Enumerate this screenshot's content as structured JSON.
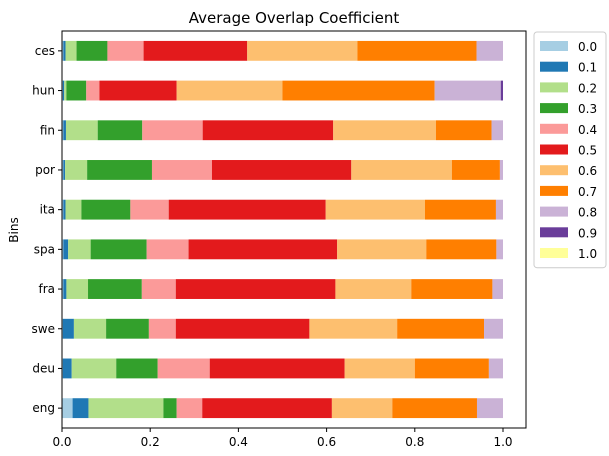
{
  "chart_data": {
    "type": "bar",
    "orientation": "horizontal",
    "stacked": true,
    "title": "Average Overlap Coefficient",
    "xlabel": "",
    "ylabel": "Bins",
    "xlim": [
      0,
      1.0
    ],
    "x_ticks": [
      "0.0",
      "0.2",
      "0.4",
      "0.6",
      "0.8",
      "1.0"
    ],
    "grid": false,
    "legend_position": "outside-top-right",
    "categories": [
      "ces",
      "hun",
      "fin",
      "por",
      "ita",
      "spa",
      "fra",
      "swe",
      "deu",
      "eng"
    ],
    "series": [
      {
        "name": "0.0",
        "color": "#a6cee3",
        "values": [
          0.003,
          0.002,
          0.003,
          0.003,
          0.003,
          0.003,
          0.003,
          0.002,
          0.002,
          0.024
        ]
      },
      {
        "name": "0.1",
        "color": "#1f78b4",
        "values": [
          0.005,
          0.003,
          0.006,
          0.004,
          0.005,
          0.011,
          0.007,
          0.025,
          0.02,
          0.036
        ]
      },
      {
        "name": "0.2",
        "color": "#b2df8a",
        "values": [
          0.025,
          0.005,
          0.072,
          0.05,
          0.036,
          0.051,
          0.049,
          0.073,
          0.101,
          0.17
        ]
      },
      {
        "name": "0.3",
        "color": "#33a02c",
        "values": [
          0.07,
          0.045,
          0.101,
          0.147,
          0.111,
          0.127,
          0.122,
          0.097,
          0.094,
          0.03
        ]
      },
      {
        "name": "0.4",
        "color": "#fb9a99",
        "values": [
          0.082,
          0.03,
          0.137,
          0.136,
          0.087,
          0.095,
          0.077,
          0.061,
          0.118,
          0.058
        ]
      },
      {
        "name": "0.5",
        "color": "#e31a1c",
        "values": [
          0.235,
          0.175,
          0.296,
          0.316,
          0.356,
          0.337,
          0.362,
          0.303,
          0.306,
          0.294
        ]
      },
      {
        "name": "0.6",
        "color": "#fdbf6f",
        "values": [
          0.25,
          0.24,
          0.233,
          0.228,
          0.225,
          0.202,
          0.172,
          0.199,
          0.159,
          0.137
        ]
      },
      {
        "name": "0.7",
        "color": "#ff7f00",
        "values": [
          0.27,
          0.345,
          0.126,
          0.109,
          0.161,
          0.159,
          0.184,
          0.197,
          0.168,
          0.192
        ]
      },
      {
        "name": "0.8",
        "color": "#cab2d6",
        "values": [
          0.06,
          0.15,
          0.026,
          0.007,
          0.016,
          0.015,
          0.024,
          0.043,
          0.032,
          0.059
        ]
      },
      {
        "name": "0.9",
        "color": "#6a3d9a",
        "values": [
          0.0,
          0.005,
          0.0,
          0.0,
          0.0,
          0.0,
          0.0,
          0.0,
          0.0,
          0.0
        ]
      },
      {
        "name": "1.0",
        "color": "#ffff99",
        "values": [
          0.0,
          0.0,
          0.0,
          0.0,
          0.0,
          0.0,
          0.0,
          0.0,
          0.0,
          0.0
        ]
      }
    ]
  }
}
